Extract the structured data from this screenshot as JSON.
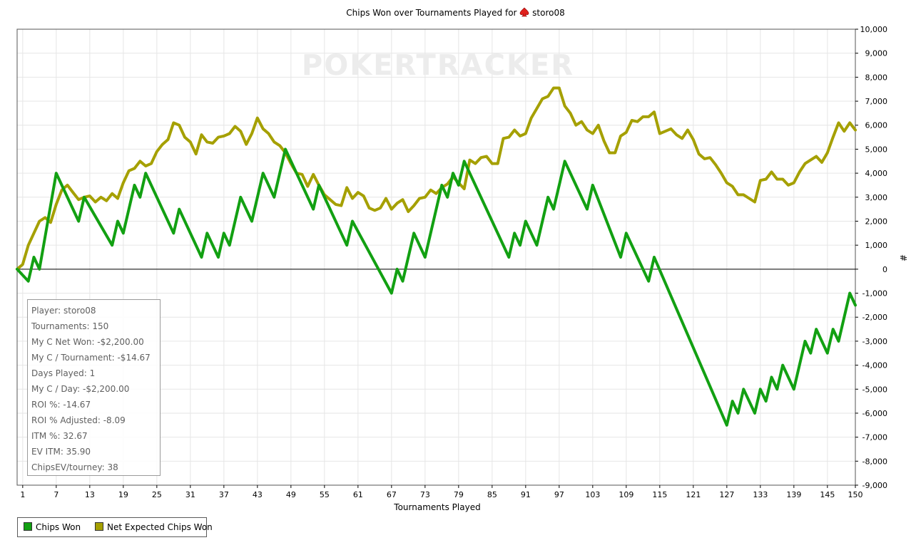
{
  "chart_data": {
    "type": "line",
    "title": "Chips Won over Tournaments Played for",
    "player_name": "storo08",
    "xlabel": "Tournaments Played",
    "ylabel": "#",
    "xlim": [
      1,
      150
    ],
    "ylim": [
      -9000,
      10000
    ],
    "x_ticks": [
      1,
      7,
      13,
      19,
      25,
      31,
      37,
      43,
      49,
      55,
      61,
      67,
      73,
      79,
      85,
      91,
      97,
      103,
      109,
      115,
      121,
      127,
      133,
      139,
      145,
      150
    ],
    "y_ticks": [
      10000,
      9000,
      8000,
      7000,
      6000,
      5000,
      4000,
      3000,
      2000,
      1000,
      0,
      -1000,
      -2000,
      -3000,
      -4000,
      -5000,
      -6000,
      -7000,
      -8000,
      -9000
    ],
    "y_tick_labels": [
      "10,000",
      "9,000",
      "8,000",
      "7,000",
      "6,000",
      "5,000",
      "4,000",
      "3,000",
      "2,000",
      "1,000",
      "0",
      "-1,000",
      "-2,000",
      "-3,000",
      "-4,000",
      "-5,000",
      "-6,000",
      "-7,000",
      "-8,000",
      "-9,000"
    ],
    "grid": true,
    "legend_position": "bottom-left",
    "watermark": "POKERTRACKER",
    "series": [
      {
        "name": "Chips Won",
        "color": "#12a012",
        "points": [
          [
            0,
            0
          ],
          [
            2,
            -500
          ],
          [
            3,
            500
          ],
          [
            4,
            0
          ],
          [
            7,
            4000
          ],
          [
            11,
            2000
          ],
          [
            12,
            3000
          ],
          [
            17,
            1000
          ],
          [
            18,
            2000
          ],
          [
            19,
            1500
          ],
          [
            21,
            3500
          ],
          [
            22,
            3000
          ],
          [
            23,
            4000
          ],
          [
            28,
            1500
          ],
          [
            29,
            2500
          ],
          [
            33,
            500
          ],
          [
            34,
            1500
          ],
          [
            36,
            500
          ],
          [
            37,
            1500
          ],
          [
            38,
            1000
          ],
          [
            40,
            3000
          ],
          [
            42,
            2000
          ],
          [
            44,
            4000
          ],
          [
            46,
            3000
          ],
          [
            48,
            5000
          ],
          [
            53,
            2500
          ],
          [
            54,
            3500
          ],
          [
            59,
            1000
          ],
          [
            60,
            2000
          ],
          [
            67,
            -1000
          ],
          [
            68,
            0
          ],
          [
            69,
            -500
          ],
          [
            71,
            1500
          ],
          [
            73,
            500
          ],
          [
            76,
            3500
          ],
          [
            77,
            3000
          ],
          [
            78,
            4000
          ],
          [
            79,
            3500
          ],
          [
            80,
            4500
          ],
          [
            88,
            500
          ],
          [
            89,
            1500
          ],
          [
            90,
            1000
          ],
          [
            91,
            2000
          ],
          [
            93,
            1000
          ],
          [
            95,
            3000
          ],
          [
            96,
            2500
          ],
          [
            98,
            4500
          ],
          [
            102,
            2500
          ],
          [
            103,
            3500
          ],
          [
            108,
            500
          ],
          [
            109,
            1500
          ],
          [
            113,
            -500
          ],
          [
            114,
            500
          ],
          [
            127,
            -6500
          ],
          [
            128,
            -5500
          ],
          [
            129,
            -6000
          ],
          [
            130,
            -5000
          ],
          [
            132,
            -6000
          ],
          [
            133,
            -5000
          ],
          [
            134,
            -5500
          ],
          [
            135,
            -4500
          ],
          [
            136,
            -5000
          ],
          [
            137,
            -4000
          ],
          [
            139,
            -5000
          ],
          [
            141,
            -3000
          ],
          [
            142,
            -3500
          ],
          [
            143,
            -2500
          ],
          [
            145,
            -3500
          ],
          [
            146,
            -2500
          ],
          [
            147,
            -3000
          ],
          [
            149,
            -1000
          ],
          [
            150,
            -1500
          ]
        ]
      },
      {
        "name": "Net Expected Chips Won",
        "color": "#a5a000",
        "points": [
          [
            0,
            0
          ],
          [
            1,
            200
          ],
          [
            2,
            1000
          ],
          [
            3,
            1500
          ],
          [
            4,
            2000
          ],
          [
            5,
            2150
          ],
          [
            6,
            1950
          ],
          [
            7,
            2700
          ],
          [
            8,
            3300
          ],
          [
            9,
            3500
          ],
          [
            10,
            3200
          ],
          [
            11,
            2900
          ],
          [
            12,
            3000
          ],
          [
            13,
            3050
          ],
          [
            14,
            2800
          ],
          [
            15,
            3000
          ],
          [
            16,
            2850
          ],
          [
            17,
            3150
          ],
          [
            18,
            2950
          ],
          [
            19,
            3600
          ],
          [
            20,
            4100
          ],
          [
            21,
            4200
          ],
          [
            22,
            4500
          ],
          [
            23,
            4300
          ],
          [
            24,
            4400
          ],
          [
            25,
            4900
          ],
          [
            26,
            5200
          ],
          [
            27,
            5400
          ],
          [
            28,
            6100
          ],
          [
            29,
            6000
          ],
          [
            30,
            5500
          ],
          [
            31,
            5300
          ],
          [
            32,
            4800
          ],
          [
            33,
            5600
          ],
          [
            34,
            5300
          ],
          [
            35,
            5250
          ],
          [
            36,
            5500
          ],
          [
            37,
            5550
          ],
          [
            38,
            5650
          ],
          [
            39,
            5950
          ],
          [
            40,
            5750
          ],
          [
            41,
            5200
          ],
          [
            42,
            5650
          ],
          [
            43,
            6300
          ],
          [
            44,
            5850
          ],
          [
            45,
            5650
          ],
          [
            46,
            5300
          ],
          [
            47,
            5150
          ],
          [
            48,
            4850
          ],
          [
            49,
            4400
          ],
          [
            50,
            4000
          ],
          [
            51,
            3950
          ],
          [
            52,
            3450
          ],
          [
            53,
            3950
          ],
          [
            54,
            3500
          ],
          [
            55,
            3100
          ],
          [
            56,
            2900
          ],
          [
            57,
            2700
          ],
          [
            58,
            2650
          ],
          [
            59,
            3400
          ],
          [
            60,
            2950
          ],
          [
            61,
            3200
          ],
          [
            62,
            3050
          ],
          [
            63,
            2550
          ],
          [
            64,
            2450
          ],
          [
            65,
            2550
          ],
          [
            66,
            2950
          ],
          [
            67,
            2500
          ],
          [
            68,
            2750
          ],
          [
            69,
            2900
          ],
          [
            70,
            2400
          ],
          [
            71,
            2650
          ],
          [
            72,
            2950
          ],
          [
            73,
            3000
          ],
          [
            74,
            3300
          ],
          [
            75,
            3150
          ],
          [
            76,
            3400
          ],
          [
            77,
            3550
          ],
          [
            78,
            3850
          ],
          [
            79,
            3600
          ],
          [
            80,
            3350
          ],
          [
            81,
            4550
          ],
          [
            82,
            4400
          ],
          [
            83,
            4650
          ],
          [
            84,
            4700
          ],
          [
            85,
            4400
          ],
          [
            86,
            4400
          ],
          [
            87,
            5450
          ],
          [
            88,
            5500
          ],
          [
            89,
            5800
          ],
          [
            90,
            5550
          ],
          [
            91,
            5650
          ],
          [
            92,
            6300
          ],
          [
            93,
            6700
          ],
          [
            94,
            7100
          ],
          [
            95,
            7200
          ],
          [
            96,
            7550
          ],
          [
            97,
            7550
          ],
          [
            98,
            6800
          ],
          [
            99,
            6500
          ],
          [
            100,
            6000
          ],
          [
            101,
            6150
          ],
          [
            102,
            5800
          ],
          [
            103,
            5650
          ],
          [
            104,
            6000
          ],
          [
            105,
            5350
          ],
          [
            106,
            4850
          ],
          [
            107,
            4850
          ],
          [
            108,
            5550
          ],
          [
            109,
            5700
          ],
          [
            110,
            6200
          ],
          [
            111,
            6150
          ],
          [
            112,
            6350
          ],
          [
            113,
            6350
          ],
          [
            114,
            6550
          ],
          [
            115,
            5650
          ],
          [
            116,
            5750
          ],
          [
            117,
            5850
          ],
          [
            118,
            5600
          ],
          [
            119,
            5450
          ],
          [
            120,
            5800
          ],
          [
            121,
            5400
          ],
          [
            122,
            4800
          ],
          [
            123,
            4600
          ],
          [
            124,
            4650
          ],
          [
            125,
            4350
          ],
          [
            126,
            4000
          ],
          [
            127,
            3600
          ],
          [
            128,
            3450
          ],
          [
            129,
            3100
          ],
          [
            130,
            3100
          ],
          [
            131,
            2950
          ],
          [
            132,
            2800
          ],
          [
            133,
            3700
          ],
          [
            134,
            3750
          ],
          [
            135,
            4050
          ],
          [
            136,
            3750
          ],
          [
            137,
            3750
          ],
          [
            138,
            3500
          ],
          [
            139,
            3600
          ],
          [
            140,
            4050
          ],
          [
            141,
            4400
          ],
          [
            142,
            4550
          ],
          [
            143,
            4700
          ],
          [
            144,
            4450
          ],
          [
            145,
            4850
          ],
          [
            146,
            5500
          ],
          [
            147,
            6100
          ],
          [
            148,
            5750
          ],
          [
            149,
            6100
          ],
          [
            150,
            5800
          ]
        ]
      }
    ]
  },
  "stats": [
    "Player: storo08",
    "Tournaments: 150",
    "My C Net Won: -$2,200.00",
    "My C / Tournament: -$14.67",
    "Days Played: 1",
    "My C / Day: -$2,200.00",
    "ROI %: -14.67",
    "ROI % Adjusted: -8.09",
    "ITM %: 32.67",
    "EV ITM: 35.90",
    "ChipsEV/tourney: 38"
  ],
  "legend": [
    {
      "label": "Chips Won",
      "color": "#12a012"
    },
    {
      "label": "Net Expected Chips Won",
      "color": "#a5a000"
    }
  ],
  "icons": {
    "title_icon": "spade-icon"
  }
}
